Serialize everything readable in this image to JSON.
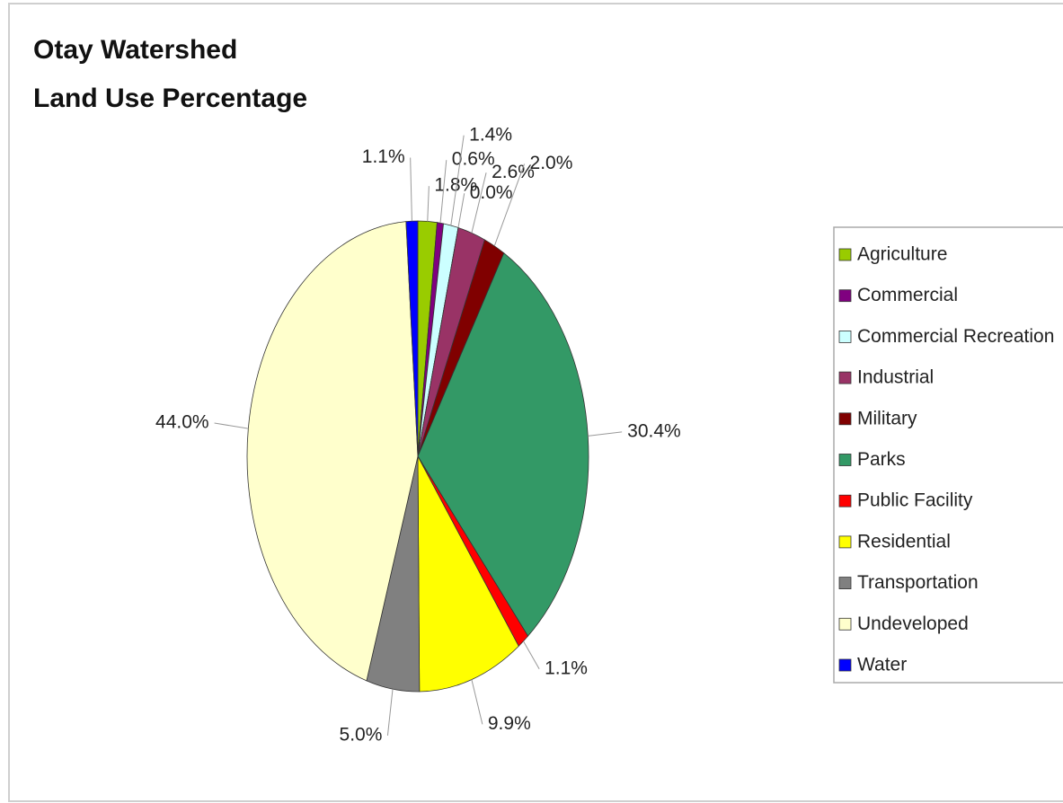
{
  "chart_data": {
    "type": "pie",
    "title": [
      "Otay Watershed",
      "Land Use Percentage"
    ],
    "categories": [
      "Agriculture",
      "Commercial",
      "Commercial Recreation",
      null,
      "Industrial",
      "Military",
      "Parks",
      "Public Facility",
      "Residential",
      "Transportation",
      "Undeveloped",
      "Water"
    ],
    "values": [
      1.8,
      0.6,
      1.4,
      0.0,
      2.6,
      2.0,
      30.4,
      1.1,
      9.9,
      5.0,
      44.0,
      1.1
    ],
    "value_labels": [
      "1.8%",
      "0.6%",
      "1.4%",
      "0.0%",
      "2.6%",
      "2.0%",
      "30.4%",
      "1.1%",
      "9.9%",
      "5.0%",
      "44.0%",
      "1.1%"
    ],
    "colors": [
      "#99cc00",
      "#800080",
      "#ccffff",
      "#00cccc",
      "#993366",
      "#800000",
      "#339966",
      "#ff0000",
      "#ffff00",
      "#808080",
      "#ffffcc",
      "#0000ff"
    ],
    "legend": "right"
  }
}
